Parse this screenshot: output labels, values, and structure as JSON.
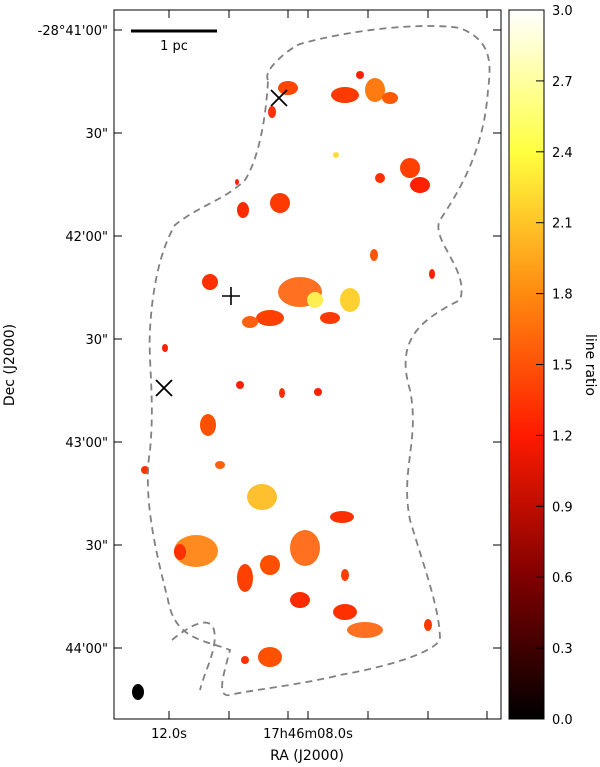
{
  "chart_data": {
    "type": "heatmap",
    "title": "",
    "xlabel": "RA (J2000)",
    "ylabel": "Dec (J2000)",
    "x_ticks": [
      "12.0s",
      "17h46m08.0s"
    ],
    "y_ticks": [
      "-28°41'00\"",
      "30\"",
      "42'00\"",
      "30\"",
      "43'00\"",
      "30\"",
      "44'00\""
    ],
    "colorbar": {
      "label": "line ratio",
      "range": [
        0.0,
        3.0
      ],
      "ticks": [
        "0.0",
        "0.3",
        "0.6",
        "0.9",
        "1.2",
        "1.5",
        "1.8",
        "2.1",
        "2.4",
        "2.7",
        "3.0"
      ],
      "colormap": "afmhot"
    },
    "scalebar_label": "1 pc",
    "contour": {
      "style": "dashed",
      "color": "#808080"
    },
    "markers": [
      {
        "symbol": "x"
      },
      {
        "symbol": "+"
      },
      {
        "symbol": "x"
      }
    ],
    "beam": {
      "color": "#000000"
    }
  },
  "colors": {
    "contour": "#808080",
    "colormap_stops": [
      "#000000",
      "#800000",
      "#ff0000",
      "#ff8000",
      "#ffff00",
      "#ffffff"
    ]
  }
}
